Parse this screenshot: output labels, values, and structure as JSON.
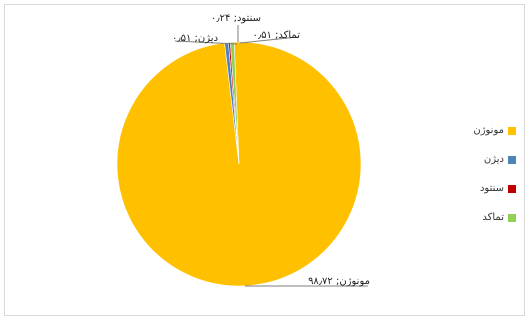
{
  "chart_data": {
    "type": "pie",
    "categories": [
      "مونوژن",
      "دیژن",
      "سنتود",
      "تماکد"
    ],
    "values": [
      98.72,
      0.51,
      0.24,
      0.51
    ],
    "colors": [
      "#FFC000",
      "#4F81BD",
      "#C00000",
      "#92D050"
    ],
    "data_labels": [
      "مونوژن; ۹۸٫۷۲",
      "دیژن; ۰٫۵۱",
      "سنتود; ۰٫۲۴",
      "تماکد; ۰٫۵۱"
    ],
    "legend_position": "right",
    "title": ""
  },
  "legend": {
    "items": [
      {
        "label": "مونوژن",
        "color": "#FFC000"
      },
      {
        "label": "دیژن",
        "color": "#4F81BD"
      },
      {
        "label": "سنتود",
        "color": "#C00000"
      },
      {
        "label": "تماکد",
        "color": "#92D050"
      }
    ]
  }
}
